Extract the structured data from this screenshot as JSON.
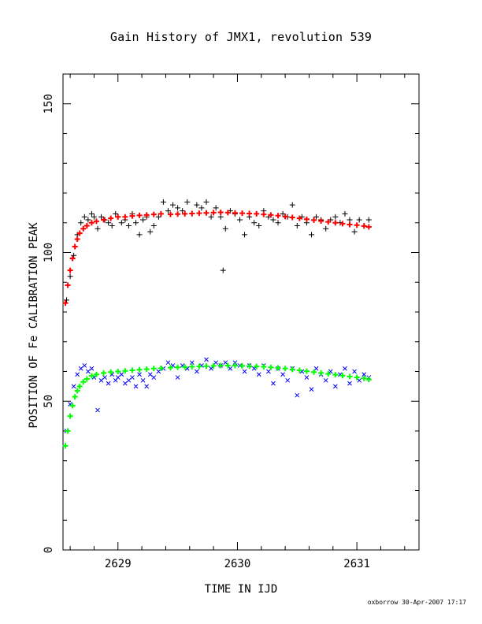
{
  "chart_data": {
    "type": "scatter",
    "title": "Gain History of JMX1, revolution 539",
    "xlabel": "TIME IN IJD",
    "ylabel": "POSITION OF Fe CALIBRATION PEAK",
    "xlim": [
      2628.54,
      2631.52
    ],
    "ylim": [
      0,
      160
    ],
    "xticks": [
      2629,
      2630,
      2631
    ],
    "yticks": [
      0,
      50,
      100,
      150
    ],
    "grid": false,
    "legend": "none",
    "series": [
      {
        "marker": "plus",
        "color": "#000000",
        "x": [
          2628.57,
          2628.6,
          2628.63,
          2628.66,
          2628.69,
          2628.72,
          2628.75,
          2628.78,
          2628.8,
          2628.83,
          2628.86,
          2628.89,
          2628.92,
          2628.95,
          2628.98,
          2629.0,
          2629.03,
          2629.06,
          2629.09,
          2629.12,
          2629.15,
          2629.18,
          2629.21,
          2629.24,
          2629.27,
          2629.3,
          2629.34,
          2629.38,
          2629.42,
          2629.46,
          2629.5,
          2629.54,
          2629.58,
          2629.62,
          2629.66,
          2629.7,
          2629.74,
          2629.78,
          2629.82,
          2629.86,
          2629.88,
          2629.9,
          2629.94,
          2629.98,
          2630.02,
          2630.06,
          2630.1,
          2630.14,
          2630.18,
          2630.22,
          2630.26,
          2630.3,
          2630.34,
          2630.38,
          2630.42,
          2630.46,
          2630.5,
          2630.54,
          2630.58,
          2630.62,
          2630.66,
          2630.7,
          2630.74,
          2630.78,
          2630.82,
          2630.86,
          2630.9,
          2630.94,
          2630.98,
          2631.02,
          2631.06,
          2631.1
        ],
        "y": [
          84,
          92,
          99,
          106,
          110,
          112,
          111,
          113,
          112,
          108,
          112,
          111,
          110,
          109,
          113,
          112,
          110,
          111,
          109,
          113,
          110,
          106,
          111,
          112,
          107,
          109,
          112,
          117,
          114,
          116,
          115,
          114,
          117,
          113,
          116,
          115,
          117,
          112,
          115,
          112,
          94,
          108,
          114,
          113,
          111,
          106,
          112,
          110,
          109,
          114,
          112,
          111,
          110,
          113,
          112,
          116,
          109,
          112,
          110,
          106,
          112,
          111,
          108,
          111,
          112,
          110,
          113,
          111,
          107,
          111,
          109,
          111
        ]
      },
      {
        "marker": "plus",
        "color": "#ff0000",
        "x": [
          2628.56,
          2628.58,
          2628.6,
          2628.62,
          2628.64,
          2628.66,
          2628.68,
          2628.71,
          2628.74,
          2628.78,
          2628.82,
          2628.88,
          2628.94,
          2629.0,
          2629.06,
          2629.12,
          2629.18,
          2629.24,
          2629.3,
          2629.36,
          2629.44,
          2629.5,
          2629.56,
          2629.62,
          2629.68,
          2629.74,
          2629.8,
          2629.86,
          2629.92,
          2629.98,
          2630.04,
          2630.1,
          2630.16,
          2630.22,
          2630.28,
          2630.34,
          2630.4,
          2630.46,
          2630.52,
          2630.58,
          2630.64,
          2630.7,
          2630.76,
          2630.82,
          2630.88,
          2630.94,
          2631.0,
          2631.06,
          2631.1
        ],
        "y": [
          83,
          89,
          94,
          98,
          102,
          104.5,
          106.5,
          108,
          109,
          110,
          110.5,
          111,
          111.5,
          112,
          112,
          112.3,
          112.5,
          112.6,
          112.8,
          113,
          112.8,
          112.9,
          113,
          113.1,
          113.2,
          113.3,
          113.4,
          113.5,
          113.4,
          113.3,
          113.2,
          113.1,
          113,
          112.8,
          112.6,
          112.4,
          112.1,
          111.8,
          111.5,
          111.2,
          110.9,
          110.6,
          110.3,
          110,
          109.7,
          109.4,
          109.2,
          108.9,
          108.6
        ]
      },
      {
        "marker": "cross",
        "color": "#0000ff",
        "x": [
          2628.57,
          2628.6,
          2628.63,
          2628.66,
          2628.69,
          2628.72,
          2628.75,
          2628.78,
          2628.8,
          2628.83,
          2628.86,
          2628.89,
          2628.92,
          2628.95,
          2628.98,
          2629.0,
          2629.03,
          2629.06,
          2629.09,
          2629.12,
          2629.15,
          2629.18,
          2629.21,
          2629.24,
          2629.27,
          2629.3,
          2629.34,
          2629.38,
          2629.42,
          2629.46,
          2629.5,
          2629.54,
          2629.58,
          2629.62,
          2629.66,
          2629.7,
          2629.74,
          2629.78,
          2629.82,
          2629.86,
          2629.9,
          2629.94,
          2629.98,
          2630.02,
          2630.06,
          2630.1,
          2630.14,
          2630.18,
          2630.22,
          2630.26,
          2630.3,
          2630.34,
          2630.38,
          2630.42,
          2630.46,
          2630.5,
          2630.54,
          2630.58,
          2630.62,
          2630.66,
          2630.7,
          2630.74,
          2630.78,
          2630.82,
          2630.86,
          2630.9,
          2630.94,
          2630.98,
          2631.02,
          2631.06,
          2631.1
        ],
        "y": [
          40,
          49,
          55,
          59,
          61,
          62,
          60,
          61,
          58,
          47,
          57,
          58,
          56,
          59,
          57,
          58,
          59,
          56,
          57,
          58,
          55,
          59,
          57,
          55,
          59,
          58,
          60,
          61,
          63,
          62,
          58,
          62,
          61,
          63,
          60,
          62,
          64,
          61,
          63,
          62,
          63,
          61,
          63,
          62,
          60,
          62,
          61,
          59,
          62,
          60,
          56,
          61,
          59,
          57,
          61,
          52,
          60,
          58,
          54,
          61,
          59,
          57,
          60,
          55,
          59,
          61,
          56,
          60,
          57,
          59,
          58
        ]
      },
      {
        "marker": "plus",
        "color": "#00ff00",
        "x": [
          2628.56,
          2628.58,
          2628.6,
          2628.62,
          2628.64,
          2628.66,
          2628.68,
          2628.71,
          2628.74,
          2628.78,
          2628.82,
          2628.88,
          2628.94,
          2629.0,
          2629.06,
          2629.12,
          2629.18,
          2629.24,
          2629.3,
          2629.36,
          2629.44,
          2629.5,
          2629.56,
          2629.62,
          2629.68,
          2629.74,
          2629.8,
          2629.86,
          2629.92,
          2629.98,
          2630.04,
          2630.1,
          2630.16,
          2630.22,
          2630.28,
          2630.34,
          2630.4,
          2630.46,
          2630.52,
          2630.58,
          2630.64,
          2630.7,
          2630.76,
          2630.82,
          2630.88,
          2630.94,
          2631.0,
          2631.06,
          2631.1
        ],
        "y": [
          35,
          40,
          45,
          48.5,
          51.5,
          53.5,
          55,
          56.5,
          57.5,
          58.5,
          59,
          59.5,
          59.8,
          60,
          60.2,
          60.4,
          60.6,
          60.8,
          61,
          61.1,
          61.3,
          61.4,
          61.5,
          61.6,
          61.7,
          61.8,
          61.9,
          62,
          62,
          62,
          61.9,
          61.8,
          61.7,
          61.6,
          61.4,
          61.2,
          61,
          60.7,
          60.4,
          60.1,
          59.8,
          59.5,
          59.2,
          58.9,
          58.6,
          58.3,
          58,
          57.7,
          57.3
        ]
      }
    ]
  },
  "footer": "oxborrow 30-Apr-2007 17:17"
}
